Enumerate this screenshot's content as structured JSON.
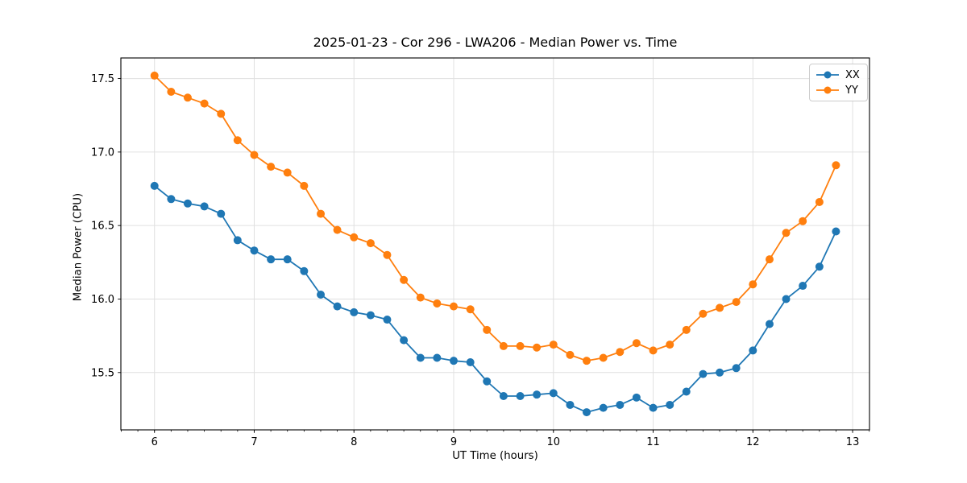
{
  "chart_data": {
    "type": "line",
    "title": "2025-01-23 - Cor 296 - LWA206 - Median Power vs. Time",
    "xlabel": "UT Time (hours)",
    "ylabel": "Median Power (CPU)",
    "xlim": [
      5.663,
      13.169
    ],
    "ylim": [
      15.11,
      17.64
    ],
    "xticks": [
      6,
      7,
      8,
      9,
      10,
      11,
      12,
      13
    ],
    "xtick_labels": [
      "6",
      "7",
      "8",
      "9",
      "10",
      "11",
      "12",
      "13"
    ],
    "yticks": [
      15.5,
      16.0,
      16.5,
      17.0,
      17.5
    ],
    "ytick_labels": [
      "15.5",
      "16.0",
      "16.5",
      "17.0",
      "17.5"
    ],
    "x_minor_tick_step": 0.166667,
    "grid": true,
    "legend_position": "upper right",
    "x": [
      6.0,
      6.167,
      6.333,
      6.5,
      6.667,
      6.833,
      7.0,
      7.167,
      7.333,
      7.5,
      7.667,
      7.833,
      8.0,
      8.167,
      8.333,
      8.5,
      8.667,
      8.833,
      9.0,
      9.167,
      9.333,
      9.5,
      9.667,
      9.833,
      10.0,
      10.167,
      10.333,
      10.5,
      10.667,
      10.833,
      11.0,
      11.167,
      11.333,
      11.5,
      11.667,
      11.833,
      12.0,
      12.167,
      12.333,
      12.5,
      12.667,
      12.833
    ],
    "series": [
      {
        "name": "XX",
        "color": "#1f77b4",
        "values": [
          16.77,
          16.68,
          16.65,
          16.63,
          16.58,
          16.4,
          16.33,
          16.27,
          16.27,
          16.19,
          16.03,
          15.95,
          15.91,
          15.89,
          15.86,
          15.72,
          15.6,
          15.6,
          15.58,
          15.57,
          15.44,
          15.34,
          15.34,
          15.35,
          15.36,
          15.28,
          15.23,
          15.26,
          15.28,
          15.33,
          15.26,
          15.28,
          15.37,
          15.49,
          15.5,
          15.53,
          15.65,
          15.83,
          16.0,
          16.09,
          16.22,
          16.46
        ]
      },
      {
        "name": "YY",
        "color": "#ff7f0e",
        "values": [
          17.52,
          17.41,
          17.37,
          17.33,
          17.26,
          17.08,
          16.98,
          16.9,
          16.86,
          16.77,
          16.58,
          16.47,
          16.42,
          16.38,
          16.3,
          16.13,
          16.01,
          15.97,
          15.95,
          15.93,
          15.79,
          15.68,
          15.68,
          15.67,
          15.69,
          15.62,
          15.58,
          15.6,
          15.64,
          15.7,
          15.65,
          15.69,
          15.79,
          15.9,
          15.94,
          15.98,
          16.1,
          16.27,
          16.45,
          16.53,
          16.66,
          16.91
        ]
      }
    ],
    "colors": {
      "grid": "#e0e0e0",
      "spine": "#000000",
      "tick": "#000000",
      "background": "#ffffff"
    }
  }
}
